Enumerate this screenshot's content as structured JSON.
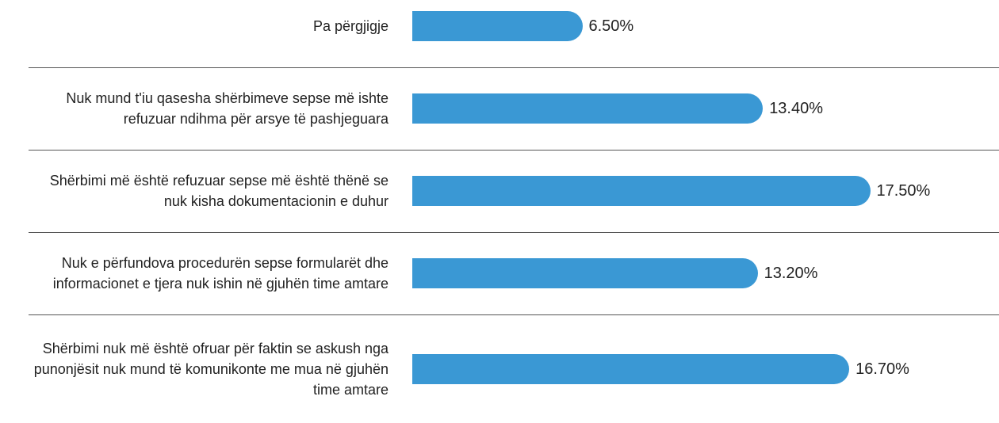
{
  "chart_data": {
    "type": "bar",
    "orientation": "horizontal",
    "categories": [
      "Pa përgjigje",
      "Nuk mund t'iu qasesha shërbimeve sepse më ishte refuzuar ndihma për arsye të pashjeguara",
      "Shërbimi më është refuzuar sepse më është thënë se nuk kisha dokumentacionin e duhur",
      "Nuk e përfundova procedurën sepse formularët dhe informacionet e tjera nuk ishin në gjuhën time amtare",
      "Shërbimi nuk më është ofruar për faktin se askush nga punonjësit nuk mund të komunikonte me mua në gjuhën time amtare"
    ],
    "values": [
      6.5,
      13.4,
      17.5,
      13.2,
      16.7
    ],
    "value_labels": [
      "6.50%",
      "13.40%",
      "17.50%",
      "13.20%",
      "16.70%"
    ],
    "color": "#3a98d4"
  }
}
